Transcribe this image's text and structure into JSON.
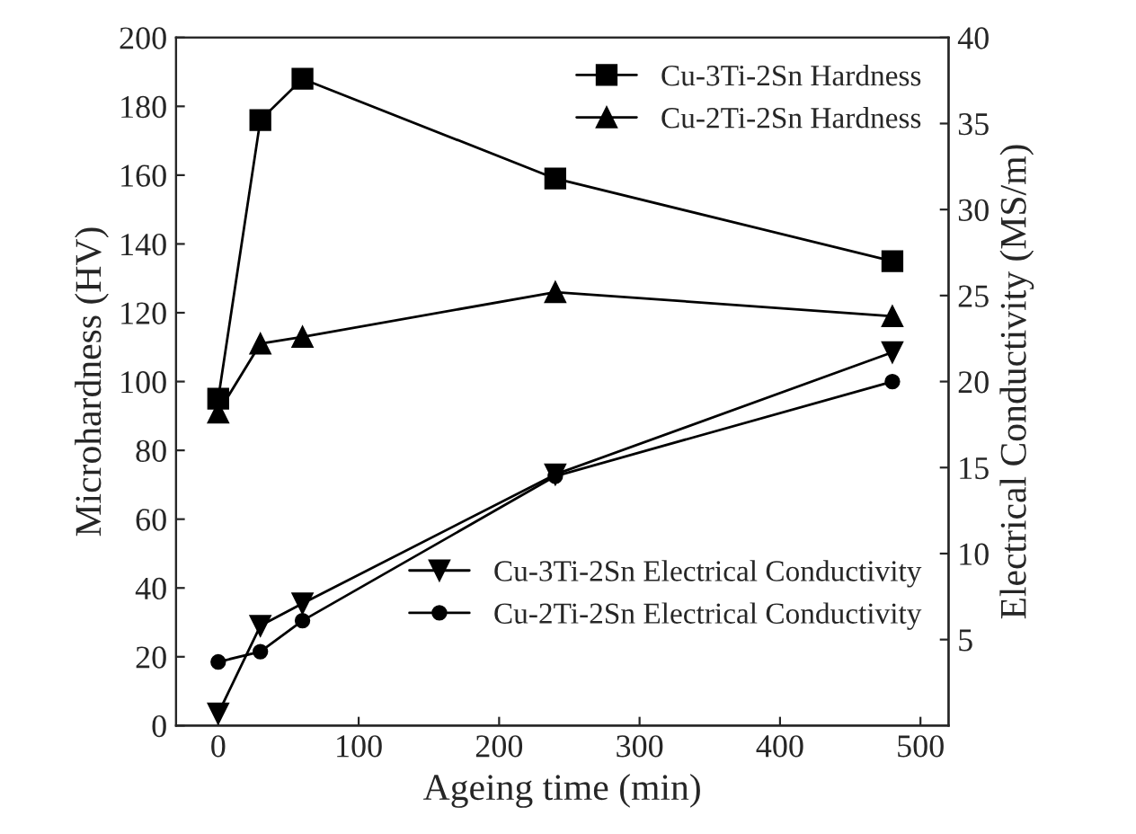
{
  "chart_data": {
    "type": "line",
    "xlabel": "Ageing time (min)",
    "ylabel": "Microhardness (HV)",
    "y2label": "Electrical Conductivity (MS/m)",
    "xlim": [
      -30,
      520
    ],
    "xticks": [
      0,
      100,
      200,
      300,
      400,
      500
    ],
    "ylim": [
      0,
      200
    ],
    "yticks": [
      0,
      20,
      40,
      60,
      80,
      100,
      120,
      140,
      160,
      180,
      200
    ],
    "y2lim": [
      0,
      40
    ],
    "y2ticks": [
      5,
      10,
      15,
      20,
      25,
      30,
      35,
      40
    ],
    "legend": "top right",
    "grid": false,
    "x": [
      0,
      30,
      60,
      240,
      480
    ],
    "series": [
      {
        "name": "Cu-3Ti-2Sn Hardness",
        "color": "#000000",
        "marker": "square",
        "values": [
          95,
          176,
          188,
          159,
          135
        ]
      },
      {
        "name": "Cu-2Ti-2Sn Hardness",
        "color": "#000000",
        "marker": "triangle",
        "values": [
          91,
          111,
          113,
          126,
          119
        ]
      },
      {
        "name": "Cu-3Ti-2Sn Electrical Conductivity",
        "color": "#000000",
        "marker": "triangle_down",
        "axis": "y2",
        "values": [
          0.7,
          5.8,
          7.1,
          14.6,
          21.7
        ]
      },
      {
        "name": "Cu-2Ti-2Sn Electrical Conductivity",
        "color": "#000000",
        "marker": "circle",
        "axis": "y2",
        "values": [
          3.7,
          4.3,
          6.1,
          14.5,
          20.0
        ]
      }
    ]
  }
}
